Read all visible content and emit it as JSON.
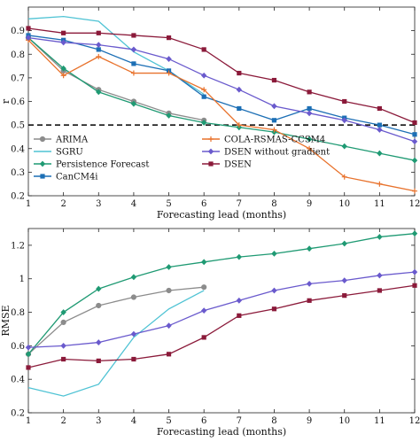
{
  "chart_data": [
    {
      "type": "line",
      "xlabel": "Forecasting lead (months)",
      "ylabel": "r",
      "x": [
        1,
        2,
        3,
        4,
        5,
        6,
        7,
        8,
        9,
        10,
        11,
        12
      ],
      "xlim": [
        1,
        12
      ],
      "ylim": [
        0.2,
        1.0
      ],
      "yticks": [
        0.2,
        0.3,
        0.4,
        0.5,
        0.6,
        0.7,
        0.8,
        0.9
      ],
      "xticks": [
        1,
        2,
        3,
        4,
        5,
        6,
        7,
        8,
        9,
        10,
        11,
        12
      ],
      "grid": false,
      "legend_position": "bottom-left",
      "reference_line": {
        "y": 0.5,
        "style": "dashed",
        "color": "#000000"
      },
      "series": [
        {
          "name": "ARIMA",
          "color": "#8c8c8c",
          "marker": "circle",
          "x": [
            1,
            2,
            3,
            4,
            5,
            6
          ],
          "values": [
            0.87,
            0.73,
            0.65,
            0.6,
            0.55,
            0.52
          ]
        },
        {
          "name": "SGRU",
          "color": "#4fc3d4",
          "marker": "none",
          "x": [
            1,
            2,
            3,
            4,
            5,
            6
          ],
          "values": [
            0.95,
            0.96,
            0.94,
            0.81,
            0.73,
            0.63
          ]
        },
        {
          "name": "Persistence Forecast",
          "color": "#1f9a73",
          "marker": "diamond",
          "x": [
            1,
            2,
            3,
            4,
            5,
            6,
            7,
            8,
            9,
            10,
            11,
            12
          ],
          "values": [
            0.87,
            0.74,
            0.64,
            0.59,
            0.54,
            0.51,
            0.49,
            0.47,
            0.44,
            0.41,
            0.38,
            0.35
          ]
        },
        {
          "name": "CanCM4i",
          "color": "#1c6fb5",
          "marker": "square",
          "x": [
            1,
            2,
            3,
            4,
            5,
            6,
            7,
            8,
            9,
            10,
            11,
            12
          ],
          "values": [
            0.88,
            0.86,
            0.82,
            0.76,
            0.73,
            0.62,
            0.57,
            0.52,
            0.57,
            0.53,
            0.5,
            0.46
          ]
        },
        {
          "name": "COLA-RSMAS-CCSM4",
          "color": "#e8722c",
          "marker": "plus",
          "x": [
            1,
            2,
            3,
            4,
            5,
            6,
            7,
            8,
            9,
            10,
            11,
            12
          ],
          "values": [
            0.86,
            0.71,
            0.79,
            0.72,
            0.72,
            0.65,
            0.5,
            0.48,
            0.4,
            0.28,
            0.25,
            0.22
          ]
        },
        {
          "name": "DSEN without gradient",
          "color": "#6a5acd",
          "marker": "diamond",
          "x": [
            1,
            2,
            3,
            4,
            5,
            6,
            7,
            8,
            9,
            10,
            11,
            12
          ],
          "values": [
            0.87,
            0.85,
            0.84,
            0.82,
            0.78,
            0.71,
            0.65,
            0.58,
            0.55,
            0.52,
            0.48,
            0.43
          ]
        },
        {
          "name": "DSEN",
          "color": "#8b1a3a",
          "marker": "square",
          "x": [
            1,
            2,
            3,
            4,
            5,
            6,
            7,
            8,
            9,
            10,
            11,
            12
          ],
          "values": [
            0.91,
            0.89,
            0.89,
            0.88,
            0.87,
            0.82,
            0.72,
            0.69,
            0.64,
            0.6,
            0.57,
            0.51
          ]
        }
      ]
    },
    {
      "type": "line",
      "xlabel": "Forecasting lead (months)",
      "ylabel": "RMSE",
      "x": [
        1,
        2,
        3,
        4,
        5,
        6,
        7,
        8,
        9,
        10,
        11,
        12
      ],
      "xlim": [
        1,
        12
      ],
      "ylim": [
        0.2,
        1.3
      ],
      "yticks": [
        0.2,
        0.4,
        0.6,
        0.8,
        1.0,
        1.2
      ],
      "xticks": [
        1,
        2,
        3,
        4,
        5,
        6,
        7,
        8,
        9,
        10,
        11,
        12
      ],
      "grid": false,
      "series": [
        {
          "name": "ARIMA",
          "color": "#8c8c8c",
          "marker": "circle",
          "x": [
            1,
            2,
            3,
            4,
            5,
            6
          ],
          "values": [
            0.55,
            0.74,
            0.84,
            0.89,
            0.93,
            0.95
          ]
        },
        {
          "name": "SGRU",
          "color": "#4fc3d4",
          "marker": "none",
          "x": [
            1,
            2,
            3,
            4,
            5,
            6
          ],
          "values": [
            0.35,
            0.3,
            0.37,
            0.65,
            0.82,
            0.93
          ]
        },
        {
          "name": "Persistence Forecast",
          "color": "#1f9a73",
          "marker": "diamond",
          "x": [
            1,
            2,
            3,
            4,
            5,
            6,
            7,
            8,
            9,
            10,
            11,
            12
          ],
          "values": [
            0.55,
            0.8,
            0.94,
            1.01,
            1.07,
            1.1,
            1.13,
            1.15,
            1.18,
            1.21,
            1.25,
            1.27
          ]
        },
        {
          "name": "DSEN without gradient",
          "color": "#6a5acd",
          "marker": "diamond",
          "x": [
            1,
            2,
            3,
            4,
            5,
            6,
            7,
            8,
            9,
            10,
            11,
            12
          ],
          "values": [
            0.59,
            0.6,
            0.62,
            0.67,
            0.72,
            0.81,
            0.87,
            0.93,
            0.97,
            0.99,
            1.02,
            1.04
          ]
        },
        {
          "name": "DSEN",
          "color": "#8b1a3a",
          "marker": "square",
          "x": [
            1,
            2,
            3,
            4,
            5,
            6,
            7,
            8,
            9,
            10,
            11,
            12
          ],
          "values": [
            0.47,
            0.52,
            0.51,
            0.52,
            0.55,
            0.65,
            0.78,
            0.82,
            0.87,
            0.9,
            0.93,
            0.96
          ]
        }
      ]
    }
  ]
}
